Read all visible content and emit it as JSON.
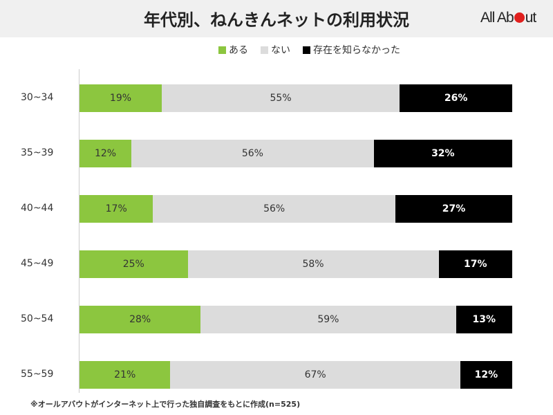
{
  "header": {
    "title": "年代別、ねんきんネットの利用状況",
    "logo": "All About"
  },
  "footnote": "※オールアバウトがインターネット上で行った独自調査をもとに作成(n=525)",
  "chart_data": {
    "type": "bar",
    "orientation": "horizontal",
    "stacked": "100%",
    "title": "年代別、ねんきんネットの利用状況",
    "categories": [
      "30~34",
      "35~39",
      "40~44",
      "45~49",
      "50~54",
      "55~59"
    ],
    "series": [
      {
        "name": "ある",
        "color": "#8cc63f",
        "values": [
          19,
          12,
          17,
          25,
          28,
          21
        ]
      },
      {
        "name": "ない",
        "color": "#dcdcdc",
        "values": [
          55,
          56,
          56,
          58,
          59,
          67
        ]
      },
      {
        "name": "存在を知らなかった",
        "color": "#000000",
        "values": [
          26,
          32,
          27,
          17,
          13,
          12
        ]
      }
    ],
    "unit": "%",
    "xlim": [
      0,
      100
    ],
    "legend": "top",
    "grid": false
  }
}
